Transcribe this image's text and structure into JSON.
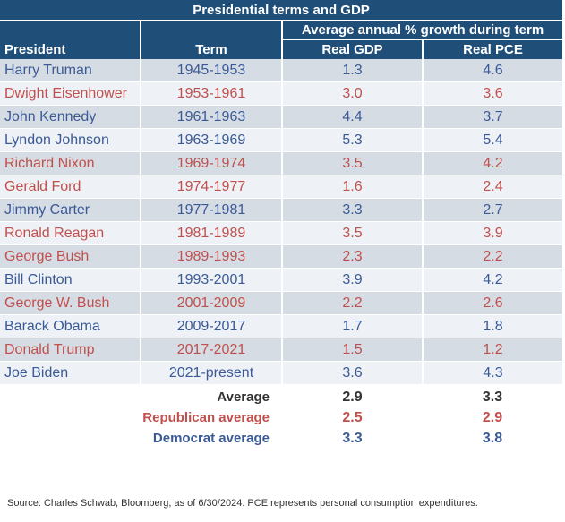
{
  "chart_data": {
    "type": "table",
    "title": "Presidential terms and GDP",
    "group_header": "Average annual % growth during term",
    "columns": [
      "President",
      "Term",
      "Real GDP",
      "Real PCE"
    ],
    "rows": [
      {
        "president": "Harry Truman",
        "term": "1945-1953",
        "gdp": "1.3",
        "pce": "4.6",
        "party": "dem"
      },
      {
        "president": "Dwight Eisenhower",
        "term": "1953-1961",
        "gdp": "3.0",
        "pce": "3.6",
        "party": "rep"
      },
      {
        "president": "John Kennedy",
        "term": "1961-1963",
        "gdp": "4.4",
        "pce": "3.7",
        "party": "dem"
      },
      {
        "president": "Lyndon Johnson",
        "term": "1963-1969",
        "gdp": "5.3",
        "pce": "5.4",
        "party": "dem"
      },
      {
        "president": "Richard Nixon",
        "term": "1969-1974",
        "gdp": "3.5",
        "pce": "4.2",
        "party": "rep"
      },
      {
        "president": "Gerald Ford",
        "term": "1974-1977",
        "gdp": "1.6",
        "pce": "2.4",
        "party": "rep"
      },
      {
        "president": "Jimmy Carter",
        "term": "1977-1981",
        "gdp": "3.3",
        "pce": "2.7",
        "party": "dem"
      },
      {
        "president": "Ronald Reagan",
        "term": "1981-1989",
        "gdp": "3.5",
        "pce": "3.9",
        "party": "rep"
      },
      {
        "president": "George Bush",
        "term": "1989-1993",
        "gdp": "2.3",
        "pce": "2.2",
        "party": "rep"
      },
      {
        "president": "Bill Clinton",
        "term": "1993-2001",
        "gdp": "3.9",
        "pce": "4.2",
        "party": "dem"
      },
      {
        "president": "George W. Bush",
        "term": "2001-2009",
        "gdp": "2.2",
        "pce": "2.6",
        "party": "rep"
      },
      {
        "president": "Barack Obama",
        "term": "2009-2017",
        "gdp": "1.7",
        "pce": "1.8",
        "party": "dem"
      },
      {
        "president": "Donald Trump",
        "term": "2017-2021",
        "gdp": "1.5",
        "pce": "1.2",
        "party": "rep"
      },
      {
        "president": "Joe Biden",
        "term": "2021-present",
        "gdp": "3.6",
        "pce": "4.3",
        "party": "dem"
      }
    ],
    "averages": [
      {
        "label": "Average",
        "gdp": "2.9",
        "pce": "3.3",
        "kind": "all"
      },
      {
        "label": "Republican average",
        "gdp": "2.5",
        "pce": "2.9",
        "kind": "rep"
      },
      {
        "label": "Democrat average",
        "gdp": "3.3",
        "pce": "3.8",
        "kind": "dem"
      }
    ]
  },
  "source": "Source: Charles Schwab, Bloomberg, as of 6/30/2024. PCE represents personal consumption expenditures.",
  "colors": {
    "header_bg": "#1f4e79",
    "democrat": "#3a5a96",
    "republican": "#c0504d",
    "row_dark": "#d6dce4",
    "row_light": "#eef1f5"
  }
}
